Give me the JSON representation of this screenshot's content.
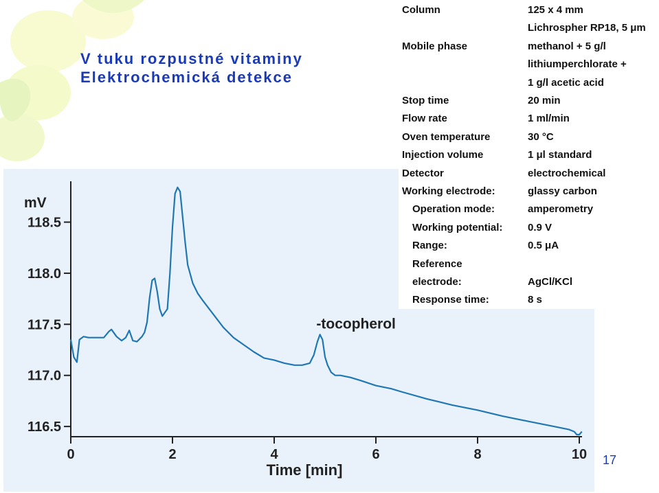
{
  "slide": {
    "title_line1": "V tuku rozpustné vitaminy",
    "title_line2": "Elektrochemická detekce",
    "page_number": "17",
    "title_color": "#1a3bb5"
  },
  "parameters": [
    {
      "label": "Column",
      "values": [
        "125 x 4 mm",
        "Lichrospher RP18, 5 μm"
      ],
      "indent": false
    },
    {
      "label": "Mobile phase",
      "values": [
        "methanol + 5 g/l",
        "lithiumperchlorate +",
        "1 g/l acetic acid"
      ],
      "indent": false
    },
    {
      "label": "Stop time",
      "values": [
        "20 min"
      ],
      "indent": false
    },
    {
      "label": "Flow rate",
      "values": [
        "1 ml/min"
      ],
      "indent": false
    },
    {
      "label": "Oven temperature",
      "values": [
        "30 °C"
      ],
      "indent": false
    },
    {
      "label": "Injection volume",
      "values": [
        "1 μl standard"
      ],
      "indent": false
    },
    {
      "label": "Detector",
      "values": [
        "electrochemical"
      ],
      "indent": false
    },
    {
      "label": "Working electrode:",
      "values": [
        "glassy carbon"
      ],
      "indent": false
    },
    {
      "label": "Operation mode:",
      "values": [
        "amperometry"
      ],
      "indent": true
    },
    {
      "label": "Working potential:",
      "values": [
        "0.9 V"
      ],
      "indent": true
    },
    {
      "label": "Range:",
      "values": [
        "0.5 μA"
      ],
      "indent": true
    },
    {
      "label": "Reference",
      "values": [],
      "indent": true
    },
    {
      "label": "electrode:",
      "values": [
        "AgCl/KCl"
      ],
      "indent": true
    },
    {
      "label": "Response time:",
      "values": [
        "8 s"
      ],
      "indent": true
    }
  ],
  "chart_data": {
    "type": "line",
    "title": "",
    "xlabel": "Time [min]",
    "ylabel": "mV",
    "xlim": [
      0,
      10
    ],
    "ylim": [
      116.4,
      118.9
    ],
    "x_ticks": [
      0,
      2,
      4,
      6,
      8,
      10
    ],
    "x_tick_labels": [
      "0",
      "2",
      "4",
      "6",
      "8",
      "10"
    ],
    "y_ticks": [
      116.5,
      117.0,
      117.5,
      118.0,
      118.5
    ],
    "y_tick_labels": [
      "116.5",
      "117.0",
      "117.5",
      "118.0",
      "118.5"
    ],
    "grid": false,
    "line_color": "#1f77b4",
    "annotations": [
      {
        "text": "-tocopherol",
        "x": 5.1,
        "y": 117.5
      }
    ],
    "series": [
      {
        "x": [
          0,
          0.06,
          0.12,
          0.17,
          0.25,
          0.35,
          0.5,
          0.65,
          0.75,
          0.8,
          0.9,
          1.0,
          1.08,
          1.15,
          1.22,
          1.3,
          1.4,
          1.45,
          1.5,
          1.55,
          1.6,
          1.65,
          1.7,
          1.75,
          1.8,
          1.9,
          1.95,
          2.0,
          2.05,
          2.1,
          2.15,
          2.2,
          2.25,
          2.3,
          2.4,
          2.5,
          2.6,
          2.8,
          3.0,
          3.2,
          3.4,
          3.6,
          3.8,
          4.0,
          4.2,
          4.4,
          4.55,
          4.7,
          4.78,
          4.85,
          4.9,
          4.95,
          5.0,
          5.05,
          5.12,
          5.2,
          5.3,
          5.5,
          5.7,
          6.0,
          6.3,
          6.5,
          7.0,
          7.5,
          8.0,
          8.5,
          9.0,
          9.5,
          9.8,
          9.9,
          9.95,
          10.0,
          10.05
        ],
        "y": [
          117.35,
          117.18,
          117.13,
          117.35,
          117.38,
          117.37,
          117.37,
          117.37,
          117.43,
          117.45,
          117.38,
          117.34,
          117.37,
          117.44,
          117.34,
          117.33,
          117.38,
          117.42,
          117.52,
          117.76,
          117.93,
          117.95,
          117.82,
          117.65,
          117.58,
          117.65,
          118.0,
          118.45,
          118.78,
          118.84,
          118.8,
          118.55,
          118.3,
          118.08,
          117.9,
          117.8,
          117.73,
          117.6,
          117.47,
          117.37,
          117.3,
          117.23,
          117.17,
          117.15,
          117.12,
          117.1,
          117.1,
          117.12,
          117.2,
          117.33,
          117.4,
          117.35,
          117.18,
          117.1,
          117.03,
          117.0,
          117.0,
          116.98,
          116.95,
          116.9,
          116.87,
          116.84,
          116.77,
          116.71,
          116.66,
          116.6,
          116.55,
          116.5,
          116.47,
          116.45,
          116.42,
          116.42,
          116.45
        ]
      }
    ]
  }
}
